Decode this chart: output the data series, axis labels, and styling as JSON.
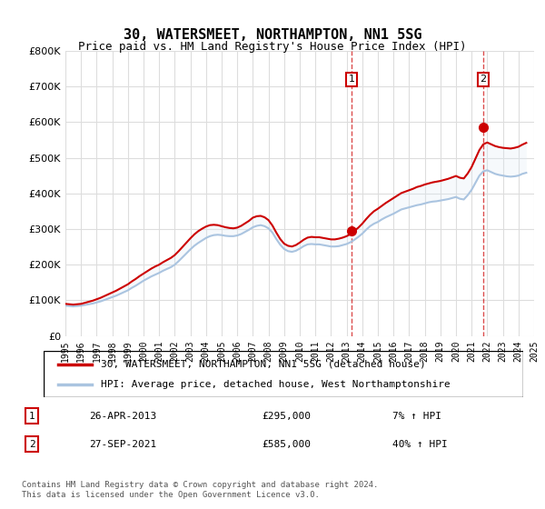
{
  "title": "30, WATERSMEET, NORTHAMPTON, NN1 5SG",
  "subtitle": "Price paid vs. HM Land Registry's House Price Index (HPI)",
  "hpi_label": "HPI: Average price, detached house, West Northamptonshire",
  "property_label": "30, WATERSMEET, NORTHAMPTON, NN1 5SG (detached house)",
  "footer": "Contains HM Land Registry data © Crown copyright and database right 2024.\nThis data is licensed under the Open Government Licence v3.0.",
  "sale1_label": "26-APR-2013",
  "sale1_price": "£295,000",
  "sale1_hpi": "7% ↑ HPI",
  "sale1_year": 2013.32,
  "sale1_value": 295000,
  "sale2_label": "27-SEP-2021",
  "sale2_price": "£585,000",
  "sale2_hpi": "40% ↑ HPI",
  "sale2_year": 2021.75,
  "sale2_value": 585000,
  "ylim": [
    0,
    800000
  ],
  "yticks": [
    0,
    100000,
    200000,
    300000,
    400000,
    500000,
    600000,
    700000,
    800000
  ],
  "xlim": [
    1995,
    2025
  ],
  "xticks": [
    1995,
    1996,
    1997,
    1998,
    1999,
    2000,
    2001,
    2002,
    2003,
    2004,
    2005,
    2006,
    2007,
    2008,
    2009,
    2010,
    2011,
    2012,
    2013,
    2014,
    2015,
    2016,
    2017,
    2018,
    2019,
    2020,
    2021,
    2022,
    2023,
    2024,
    2025
  ],
  "property_color": "#cc0000",
  "hpi_color": "#aac4e0",
  "vline_color": "#cc0000",
  "vline_style": "dashed",
  "shade_color": "#dce9f5",
  "background_color": "#ffffff",
  "grid_color": "#dddddd",
  "sale1_num": "1",
  "sale2_num": "2",
  "hpi_data_x": [
    1995.0,
    1995.25,
    1995.5,
    1995.75,
    1996.0,
    1996.25,
    1996.5,
    1996.75,
    1997.0,
    1997.25,
    1997.5,
    1997.75,
    1998.0,
    1998.25,
    1998.5,
    1998.75,
    1999.0,
    1999.25,
    1999.5,
    1999.75,
    2000.0,
    2000.25,
    2000.5,
    2000.75,
    2001.0,
    2001.25,
    2001.5,
    2001.75,
    2002.0,
    2002.25,
    2002.5,
    2002.75,
    2003.0,
    2003.25,
    2003.5,
    2003.75,
    2004.0,
    2004.25,
    2004.5,
    2004.75,
    2005.0,
    2005.25,
    2005.5,
    2005.75,
    2006.0,
    2006.25,
    2006.5,
    2006.75,
    2007.0,
    2007.25,
    2007.5,
    2007.75,
    2008.0,
    2008.25,
    2008.5,
    2008.75,
    2009.0,
    2009.25,
    2009.5,
    2009.75,
    2010.0,
    2010.25,
    2010.5,
    2010.75,
    2011.0,
    2011.25,
    2011.5,
    2011.75,
    2012.0,
    2012.25,
    2012.5,
    2012.75,
    2013.0,
    2013.25,
    2013.5,
    2013.75,
    2014.0,
    2014.25,
    2014.5,
    2014.75,
    2015.0,
    2015.25,
    2015.5,
    2015.75,
    2016.0,
    2016.25,
    2016.5,
    2016.75,
    2017.0,
    2017.25,
    2017.5,
    2017.75,
    2018.0,
    2018.25,
    2018.5,
    2018.75,
    2019.0,
    2019.25,
    2019.5,
    2019.75,
    2020.0,
    2020.25,
    2020.5,
    2020.75,
    2021.0,
    2021.25,
    2021.5,
    2021.75,
    2022.0,
    2022.25,
    2022.5,
    2022.75,
    2023.0,
    2023.25,
    2023.5,
    2023.75,
    2024.0,
    2024.25,
    2024.5
  ],
  "hpi_data_y": [
    85000,
    84000,
    83000,
    84000,
    85000,
    87000,
    89000,
    91000,
    94000,
    97000,
    101000,
    105000,
    109000,
    113000,
    118000,
    123000,
    128000,
    135000,
    141000,
    148000,
    155000,
    161000,
    167000,
    172000,
    177000,
    183000,
    188000,
    193000,
    200000,
    210000,
    221000,
    232000,
    243000,
    253000,
    261000,
    268000,
    275000,
    280000,
    283000,
    284000,
    283000,
    281000,
    280000,
    280000,
    282000,
    286000,
    292000,
    298000,
    305000,
    309000,
    311000,
    308000,
    302000,
    290000,
    272000,
    256000,
    244000,
    238000,
    236000,
    239000,
    245000,
    252000,
    257000,
    258000,
    257000,
    257000,
    255000,
    253000,
    251000,
    251000,
    252000,
    255000,
    258000,
    263000,
    270000,
    278000,
    287000,
    298000,
    308000,
    315000,
    320000,
    327000,
    333000,
    338000,
    343000,
    349000,
    355000,
    358000,
    361000,
    364000,
    367000,
    369000,
    372000,
    375000,
    377000,
    378000,
    380000,
    382000,
    384000,
    387000,
    390000,
    385000,
    383000,
    395000,
    410000,
    430000,
    450000,
    462000,
    465000,
    460000,
    455000,
    452000,
    450000,
    448000,
    447000,
    448000,
    450000,
    455000,
    458000
  ],
  "property_data_x": [
    1995.0,
    1995.25,
    1995.5,
    1995.75,
    1996.0,
    1996.25,
    1996.5,
    1996.75,
    1997.0,
    1997.25,
    1997.5,
    1997.75,
    1998.0,
    1998.25,
    1998.5,
    1998.75,
    1999.0,
    1999.25,
    1999.5,
    1999.75,
    2000.0,
    2000.25,
    2000.5,
    2000.75,
    2001.0,
    2001.25,
    2001.5,
    2001.75,
    2002.0,
    2002.25,
    2002.5,
    2002.75,
    2003.0,
    2003.25,
    2003.5,
    2003.75,
    2004.0,
    2004.25,
    2004.5,
    2004.75,
    2005.0,
    2005.25,
    2005.5,
    2005.75,
    2006.0,
    2006.25,
    2006.5,
    2006.75,
    2007.0,
    2007.25,
    2007.5,
    2007.75,
    2008.0,
    2008.25,
    2008.5,
    2008.75,
    2009.0,
    2009.25,
    2009.5,
    2009.75,
    2010.0,
    2010.25,
    2010.5,
    2010.75,
    2011.0,
    2011.25,
    2011.5,
    2011.75,
    2012.0,
    2012.25,
    2012.5,
    2012.75,
    2013.0,
    2013.25,
    2013.5,
    2013.75,
    2014.0,
    2014.25,
    2014.5,
    2014.75,
    2015.0,
    2015.25,
    2015.5,
    2015.75,
    2016.0,
    2016.25,
    2016.5,
    2016.75,
    2017.0,
    2017.25,
    2017.5,
    2017.75,
    2018.0,
    2018.25,
    2018.5,
    2018.75,
    2019.0,
    2019.25,
    2019.5,
    2019.75,
    2020.0,
    2020.25,
    2020.5,
    2020.75,
    2021.0,
    2021.25,
    2021.5,
    2021.75,
    2022.0,
    2022.25,
    2022.5,
    2022.75,
    2023.0,
    2023.25,
    2023.5,
    2023.75,
    2024.0,
    2024.25,
    2024.5
  ],
  "property_data_y": [
    90000,
    89000,
    88000,
    89000,
    90000,
    93000,
    96000,
    99000,
    103000,
    107000,
    112000,
    117000,
    122000,
    127000,
    133000,
    139000,
    145000,
    153000,
    160000,
    168000,
    175000,
    182000,
    189000,
    195000,
    200000,
    207000,
    213000,
    219000,
    227000,
    238000,
    250000,
    262000,
    274000,
    285000,
    294000,
    301000,
    307000,
    311000,
    312000,
    311000,
    308000,
    305000,
    303000,
    302000,
    304000,
    309000,
    316000,
    323000,
    332000,
    336000,
    337000,
    333000,
    325000,
    310000,
    290000,
    272000,
    259000,
    253000,
    251000,
    255000,
    262000,
    270000,
    276000,
    278000,
    277000,
    277000,
    275000,
    273000,
    271000,
    271000,
    273000,
    276000,
    280000,
    286000,
    295000,
    304000,
    315000,
    328000,
    340000,
    350000,
    357000,
    365000,
    373000,
    380000,
    387000,
    394000,
    401000,
    405000,
    409000,
    413000,
    418000,
    421000,
    425000,
    428000,
    431000,
    433000,
    435000,
    438000,
    441000,
    445000,
    449000,
    444000,
    442000,
    456000,
    474000,
    498000,
    522000,
    538000,
    543000,
    538000,
    533000,
    530000,
    528000,
    527000,
    526000,
    528000,
    531000,
    537000,
    542000
  ]
}
